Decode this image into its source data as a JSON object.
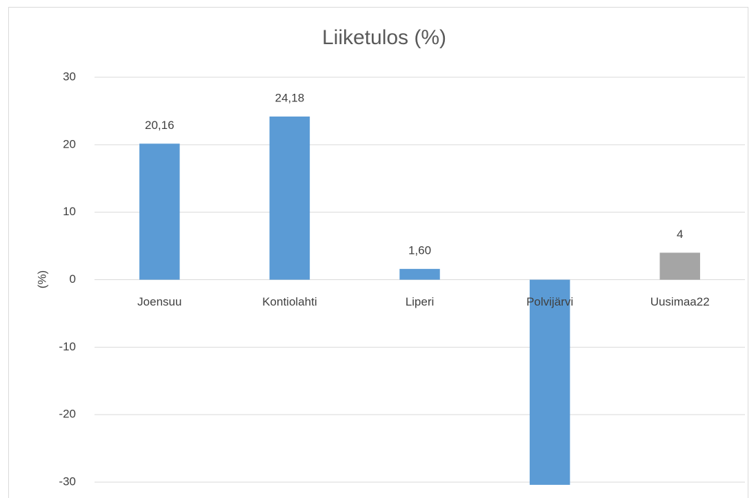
{
  "chart_data": {
    "type": "bar",
    "title": "Liiketulos (%)",
    "y_label": "(%)",
    "categories": [
      "Joensuu",
      "Kontiolahti",
      "Liperi",
      "Polvijärvi",
      "Uusimaa22"
    ],
    "values": [
      20.16,
      24.18,
      1.6,
      -30.4,
      4
    ],
    "value_labels": [
      "20,16",
      "24,18",
      "1,60",
      null,
      "4"
    ],
    "colors": [
      "#5b9bd5",
      "#5b9bd5",
      "#5b9bd5",
      "#5b9bd5",
      "#a5a5a5"
    ],
    "ylim": [
      -30,
      30
    ],
    "yticks": [
      -30,
      -20,
      -10,
      0,
      10,
      20,
      30
    ],
    "grid": true
  }
}
